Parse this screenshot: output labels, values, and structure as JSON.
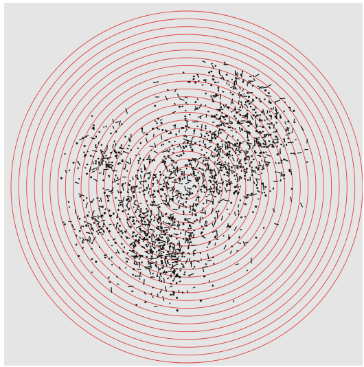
{
  "map": {
    "background_color": "#e5e5e5",
    "ring_color": "#e03c3c",
    "building_color": "#111111",
    "ring_count": 22,
    "buffer_rings": "concentric-distance-bands",
    "layers": [
      "distance-rings",
      "building-footprints"
    ]
  }
}
